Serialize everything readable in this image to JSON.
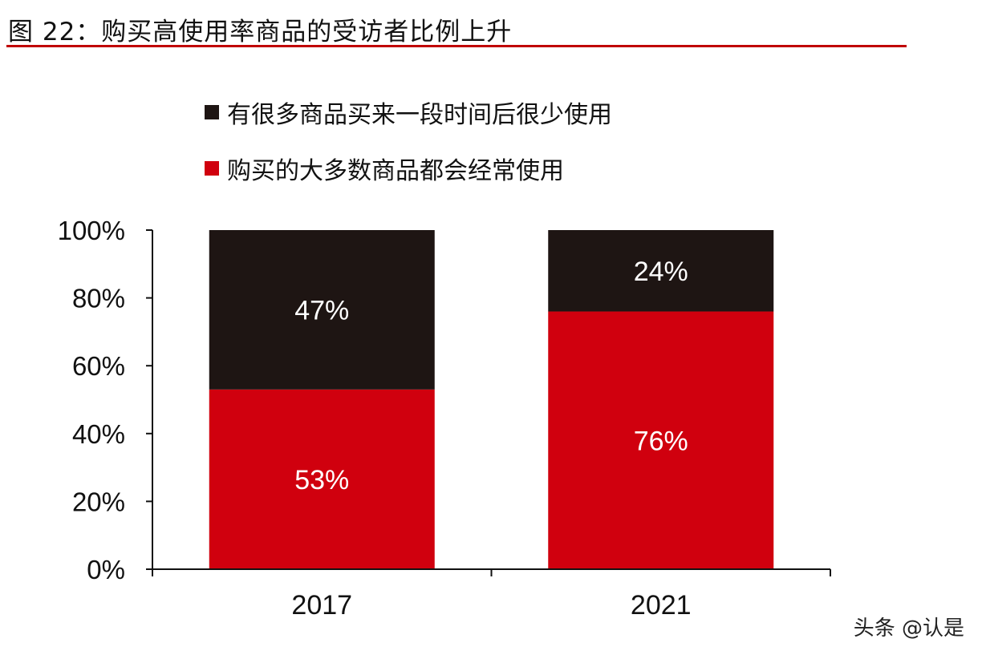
{
  "title": "图 22：购买高使用率商品的受访者比例上升",
  "watermark": "头条 @认是",
  "chart_data": {
    "type": "bar",
    "stacked": true,
    "categories": [
      "2017",
      "2021"
    ],
    "series": [
      {
        "name": "购买的大多数商品都会经常使用",
        "values": [
          53,
          76
        ],
        "labels": [
          "53%",
          "76%"
        ],
        "color": "#d0000e"
      },
      {
        "name": "有很多商品买来一段时间后很少使用",
        "values": [
          47,
          24
        ],
        "labels": [
          "47%",
          "24%"
        ],
        "color": "#1e1513"
      }
    ],
    "ylim": [
      0,
      100
    ],
    "yticks": [
      "0%",
      "20%",
      "40%",
      "60%",
      "80%",
      "100%"
    ],
    "legend_order": [
      1,
      0
    ],
    "legend_position": "top",
    "grid": false
  }
}
